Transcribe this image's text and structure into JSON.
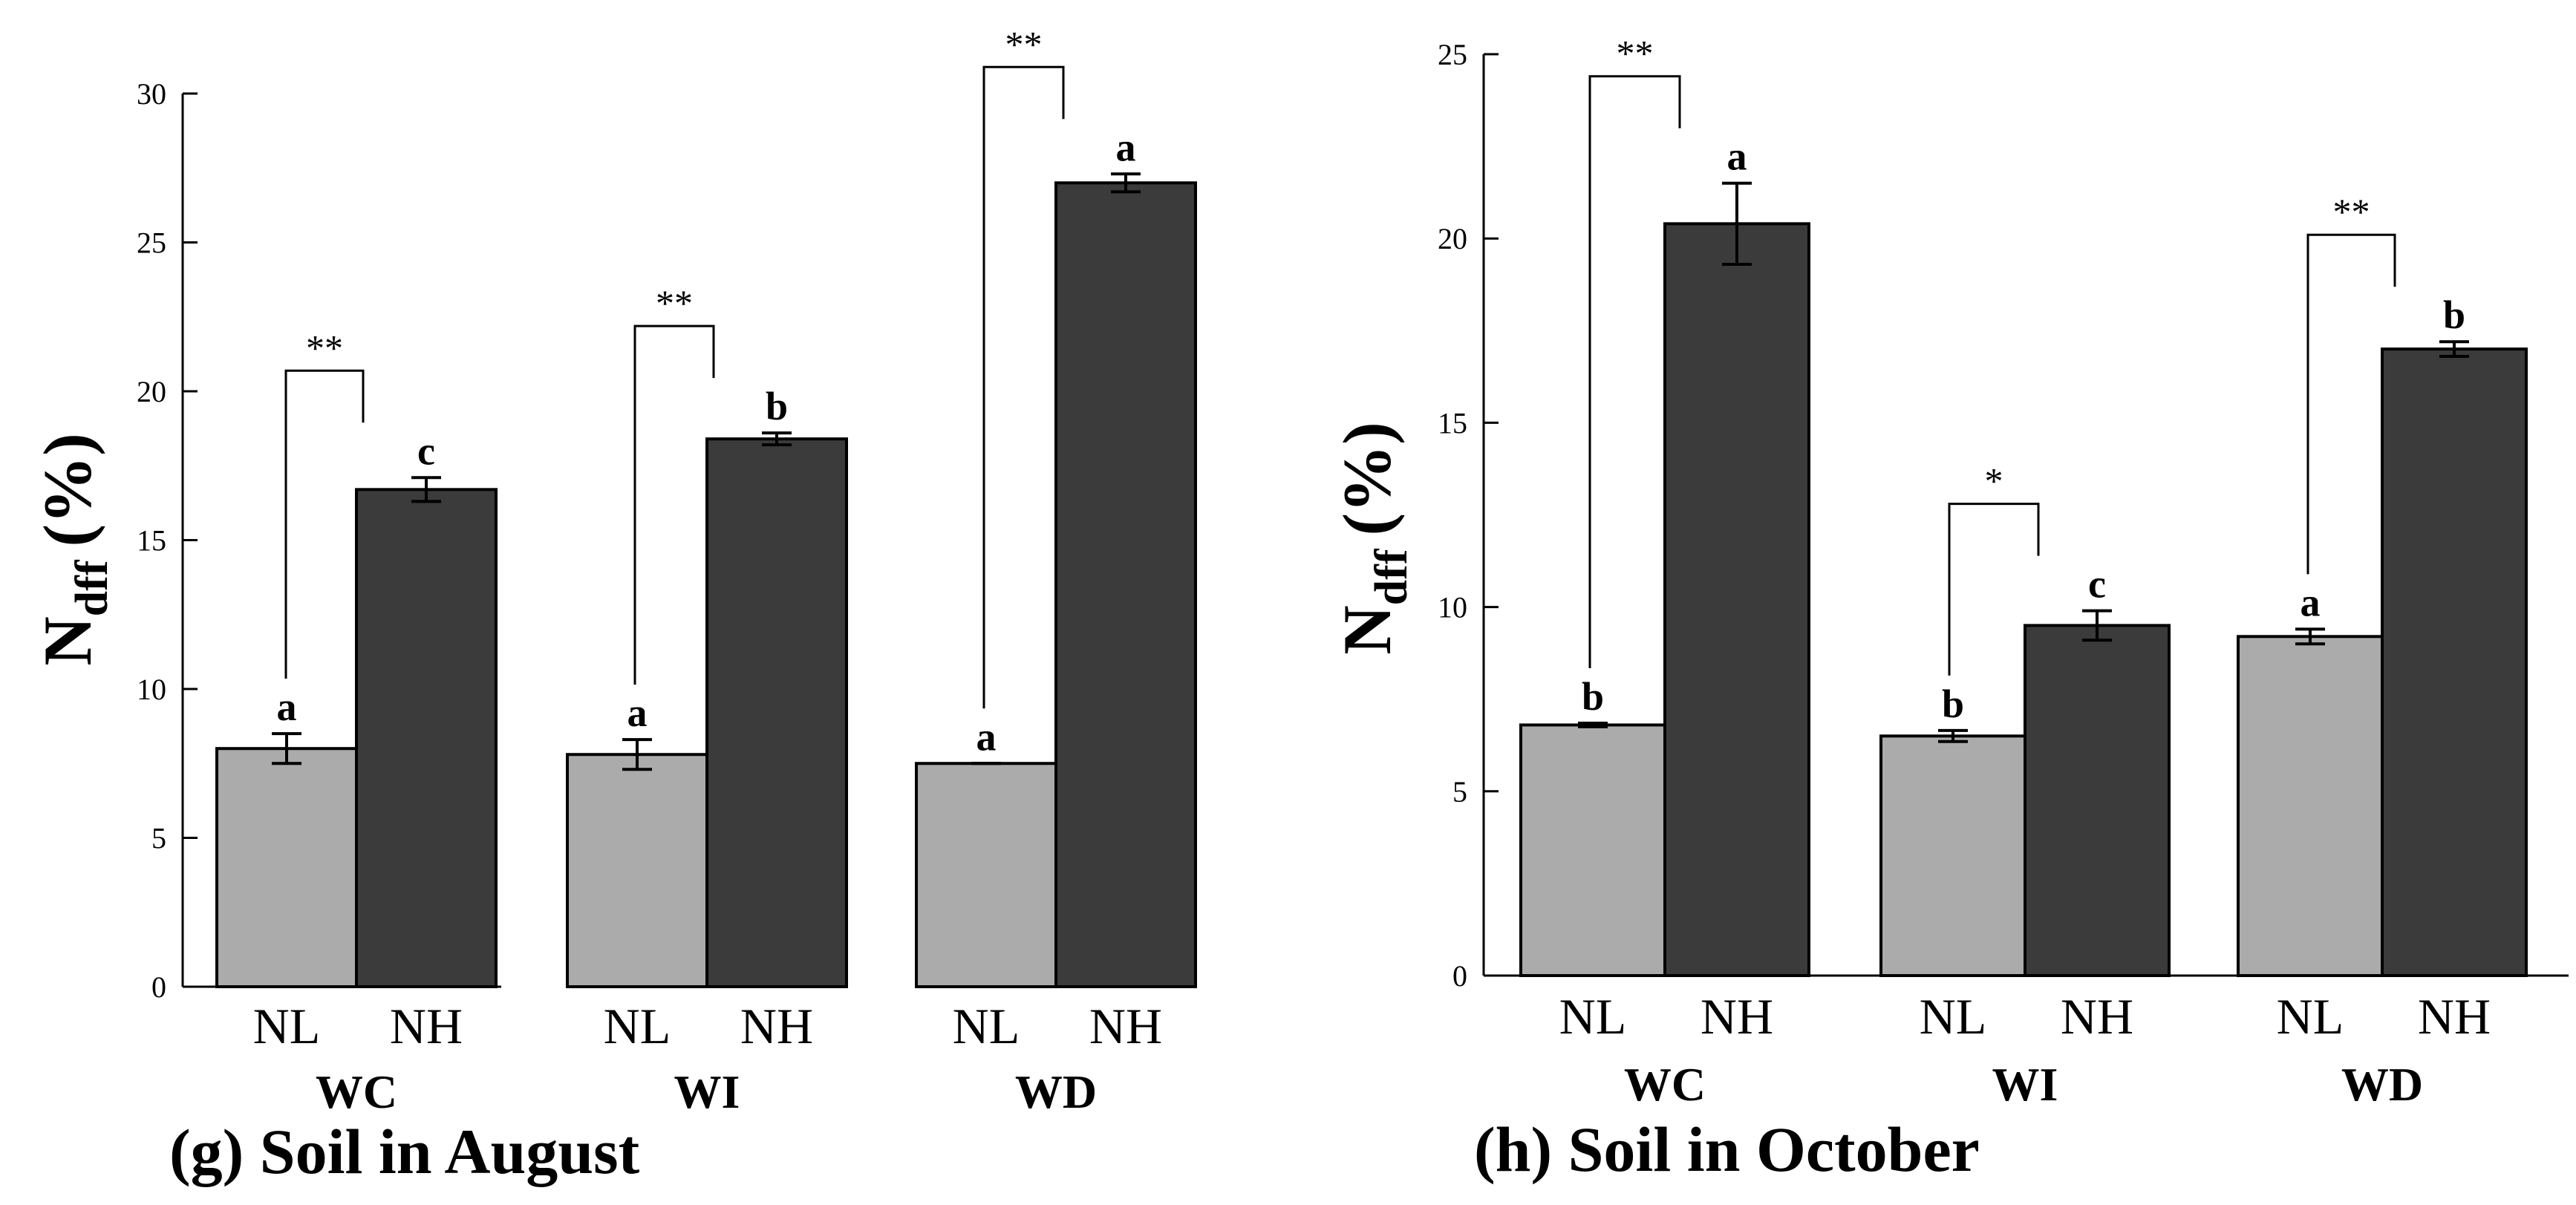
{
  "chart_data": [
    {
      "type": "bar",
      "title": "(g) Soil in August",
      "ylabel_main": "N",
      "ylabel_sub": "dff",
      "ylabel_unit": "(%)",
      "ylim": [
        0,
        30
      ],
      "yticks": [
        0,
        5,
        10,
        15,
        20,
        25,
        30
      ],
      "groups": [
        "WC",
        "WI",
        "WD"
      ],
      "subcategories": [
        "NL",
        "NH"
      ],
      "colors": {
        "NL": "#ababab",
        "NH": "#3b3b3b"
      },
      "series": [
        {
          "name": "NL",
          "values": [
            8.0,
            7.8,
            7.5
          ],
          "errors": [
            0.5,
            0.5,
            0.0
          ],
          "letters": [
            "a",
            "a",
            "a"
          ]
        },
        {
          "name": "NH",
          "values": [
            16.7,
            18.4,
            27.0
          ],
          "errors": [
            0.4,
            0.2,
            0.3
          ],
          "letters": [
            "c",
            "b",
            "a"
          ]
        }
      ],
      "significance": [
        "**",
        "**",
        "**"
      ]
    },
    {
      "type": "bar",
      "title": "(h) Soil in October",
      "ylabel_main": "N",
      "ylabel_sub": "dff",
      "ylabel_unit": "(%)",
      "ylim": [
        0,
        25
      ],
      "yticks": [
        0,
        5,
        10,
        15,
        20,
        25
      ],
      "groups": [
        "WC",
        "WI",
        "WD"
      ],
      "subcategories": [
        "NL",
        "NH"
      ],
      "colors": {
        "NL": "#ababab",
        "NH": "#3b3b3b"
      },
      "series": [
        {
          "name": "NL",
          "values": [
            6.8,
            6.5,
            9.2
          ],
          "errors": [
            0.05,
            0.15,
            0.2
          ],
          "letters": [
            "b",
            "b",
            "a"
          ]
        },
        {
          "name": "NH",
          "values": [
            20.4,
            9.5,
            17.0
          ],
          "errors": [
            1.1,
            0.4,
            0.2
          ],
          "letters": [
            "a",
            "c",
            "b"
          ]
        }
      ],
      "significance": [
        "**",
        "*",
        "**"
      ]
    }
  ]
}
